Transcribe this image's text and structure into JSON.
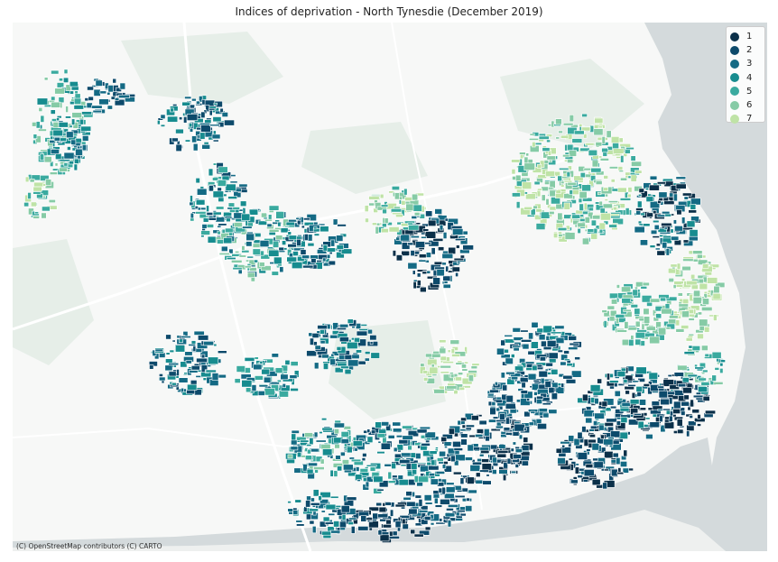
{
  "title": "Indices of deprivation - North Tynesdie (December 2019)",
  "attribution": "(C) OpenStreetMap contributors (C) CARTO",
  "basemap_colors": {
    "land": "#f7f8f7",
    "water": "#d4dadc",
    "park": "#e6eee8",
    "road": "#ffffff"
  },
  "legend": {
    "items": [
      {
        "label": "1",
        "color": "#0b3049"
      },
      {
        "label": "2",
        "color": "#0d4a6b"
      },
      {
        "label": "3",
        "color": "#146a84"
      },
      {
        "label": "4",
        "color": "#178c8f"
      },
      {
        "label": "5",
        "color": "#3aaa9f"
      },
      {
        "label": "6",
        "color": "#86cba6"
      },
      {
        "label": "7",
        "color": "#bfe3a6"
      }
    ]
  }
}
